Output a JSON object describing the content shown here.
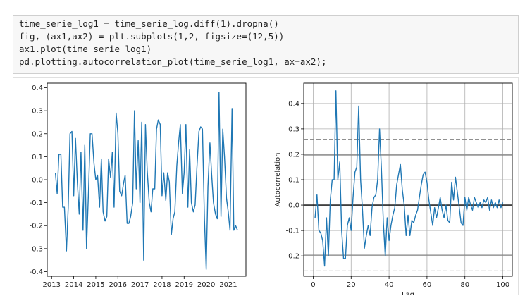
{
  "code": {
    "lines": [
      "time_serie_log1 = time_serie_log.diff(1).dropna()",
      "fig, (ax1,ax2) = plt.subplots(1,2, figsize=(12,5))",
      "ax1.plot(time_serie_log1)",
      "pd.plotting.autocorrelation_plot(time_serie_log1, ax=ax2);"
    ]
  },
  "chart_data": [
    {
      "type": "line",
      "title": "",
      "xlabel": "",
      "ylabel": "",
      "xlim": [
        2012.8,
        2021.8
      ],
      "ylim": [
        -0.42,
        0.42
      ],
      "xticks": [
        "2013",
        "2014",
        "2015",
        "2016",
        "2017",
        "2018",
        "2019",
        "2020",
        "2021"
      ],
      "yticks": [
        "-0.4",
        "-0.3",
        "-0.2",
        "-0.1",
        "0.0",
        "0.1",
        "0.2",
        "0.3",
        "0.4"
      ],
      "grid": false,
      "color": "#1f77b4",
      "series": [
        {
          "x": [
            2013.17,
            2013.25,
            2013.33,
            2013.42,
            2013.5,
            2013.58,
            2013.67,
            2013.75,
            2013.83,
            2013.92,
            2014.0,
            2014.08,
            2014.17,
            2014.25,
            2014.33,
            2014.42,
            2014.5,
            2014.58,
            2014.67,
            2014.75,
            2014.83,
            2014.92,
            2015.0,
            2015.08,
            2015.17,
            2015.25,
            2015.33,
            2015.42,
            2015.5,
            2015.58,
            2015.67,
            2015.75,
            2015.83,
            2015.92,
            2016.0,
            2016.08,
            2016.17,
            2016.25,
            2016.33,
            2016.42,
            2016.5,
            2016.58,
            2016.67,
            2016.75,
            2016.83,
            2016.92,
            2017.0,
            2017.08,
            2017.17,
            2017.25,
            2017.33,
            2017.42,
            2017.5,
            2017.58,
            2017.67,
            2017.75,
            2017.83,
            2017.92,
            2018.0,
            2018.08,
            2018.17,
            2018.25,
            2018.33,
            2018.42,
            2018.5,
            2018.58,
            2018.67,
            2018.75,
            2018.83,
            2018.92,
            2019.0,
            2019.08,
            2019.17,
            2019.25,
            2019.33,
            2019.42,
            2019.5,
            2019.58,
            2019.67,
            2019.75,
            2019.83,
            2019.92,
            2020.0,
            2020.08,
            2020.17,
            2020.25,
            2020.33,
            2020.42,
            2020.5,
            2020.58,
            2020.67,
            2020.75,
            2020.83,
            2020.92,
            2021.0,
            2021.08,
            2021.17,
            2021.25,
            2021.33,
            2021.42
          ],
          "y": [
            0.03,
            -0.06,
            0.11,
            0.11,
            -0.12,
            -0.12,
            -0.31,
            -0.12,
            0.2,
            0.21,
            -0.07,
            0.18,
            -0.02,
            -0.15,
            0.12,
            -0.22,
            0.15,
            -0.3,
            -0.05,
            0.2,
            0.2,
            0.07,
            0.0,
            0.02,
            -0.12,
            0.09,
            -0.14,
            -0.18,
            -0.16,
            0.09,
            0.01,
            0.12,
            -0.12,
            0.29,
            0.2,
            -0.05,
            -0.07,
            -0.02,
            0.02,
            -0.19,
            -0.19,
            -0.16,
            -0.1,
            0.3,
            -0.04,
            0.17,
            -0.1,
            0.25,
            -0.35,
            0.24,
            0.04,
            -0.1,
            -0.14,
            -0.04,
            -0.04,
            0.22,
            0.26,
            0.24,
            -0.07,
            0.03,
            -0.09,
            0.03,
            -0.01,
            -0.24,
            -0.17,
            -0.14,
            0.06,
            0.16,
            0.24,
            -0.06,
            0.03,
            0.24,
            -0.12,
            0.13,
            -0.1,
            -0.14,
            -0.11,
            0.05,
            0.21,
            0.23,
            0.22,
            -0.17,
            -0.39,
            -0.03,
            0.16,
            0.02,
            -0.1,
            -0.15,
            -0.17,
            0.38,
            -0.16,
            0.22,
            0.1,
            -0.08,
            -0.14,
            -0.22,
            0.31,
            -0.22,
            -0.2,
            -0.22
          ]
        }
      ]
    },
    {
      "type": "line",
      "title": "",
      "xlabel": "Lag",
      "ylabel": "Autocorrelation",
      "xlim": [
        -5,
        105
      ],
      "ylim": [
        -0.28,
        0.48
      ],
      "xticks": [
        "0",
        "20",
        "40",
        "60",
        "80",
        "100"
      ],
      "yticks": [
        "-0.2",
        "-0.1",
        "0.0",
        "0.1",
        "0.2",
        "0.3",
        "0.4"
      ],
      "grid": true,
      "color": "#1f77b4",
      "reference_lines": {
        "solid_gray": [
          0.197,
          -0.197
        ],
        "dashed_gray": [
          0.259,
          -0.259
        ],
        "zero_black": 0.0
      },
      "series": [
        {
          "x": [
            1,
            2,
            3,
            4,
            5,
            6,
            7,
            8,
            9,
            10,
            11,
            12,
            13,
            14,
            15,
            16,
            17,
            18,
            19,
            20,
            21,
            22,
            23,
            24,
            25,
            26,
            27,
            28,
            29,
            30,
            31,
            32,
            33,
            34,
            35,
            36,
            37,
            38,
            39,
            40,
            41,
            42,
            43,
            44,
            45,
            46,
            47,
            48,
            49,
            50,
            51,
            52,
            53,
            54,
            55,
            56,
            57,
            58,
            59,
            60,
            61,
            62,
            63,
            64,
            65,
            66,
            67,
            68,
            69,
            70,
            71,
            72,
            73,
            74,
            75,
            76,
            77,
            78,
            79,
            80,
            81,
            82,
            83,
            84,
            85,
            86,
            87,
            88,
            89,
            90,
            91,
            92,
            93,
            94,
            95,
            96,
            97,
            98,
            99,
            100
          ],
          "y": [
            -0.05,
            0.04,
            -0.1,
            -0.11,
            -0.14,
            -0.24,
            -0.05,
            -0.2,
            0.02,
            0.1,
            0.1,
            0.45,
            0.1,
            0.17,
            -0.1,
            -0.21,
            -0.21,
            -0.08,
            -0.05,
            -0.1,
            0.03,
            0.13,
            0.15,
            0.39,
            0.1,
            -0.02,
            -0.17,
            -0.12,
            -0.08,
            -0.12,
            -0.01,
            0.03,
            0.04,
            0.1,
            0.3,
            0.14,
            -0.07,
            -0.2,
            -0.05,
            -0.14,
            -0.08,
            -0.04,
            -0.01,
            0.08,
            0.12,
            0.16,
            0.06,
            0.0,
            -0.12,
            -0.04,
            -0.12,
            -0.06,
            -0.07,
            -0.04,
            -0.02,
            0.03,
            0.08,
            0.12,
            0.13,
            0.09,
            0.02,
            -0.03,
            -0.08,
            -0.01,
            -0.05,
            -0.01,
            0.03,
            -0.02,
            -0.05,
            0.0,
            -0.06,
            -0.07,
            0.09,
            0.02,
            0.11,
            0.05,
            -0.01,
            -0.07,
            -0.08,
            0.03,
            -0.02,
            0.03,
            0.0,
            -0.02,
            0.03,
            0.01,
            -0.01,
            0.01,
            -0.01,
            0.02,
            0.01,
            0.03,
            -0.02,
            0.02,
            -0.01,
            0.01,
            -0.01,
            0.02,
            -0.01,
            0.01
          ]
        }
      ]
    }
  ]
}
